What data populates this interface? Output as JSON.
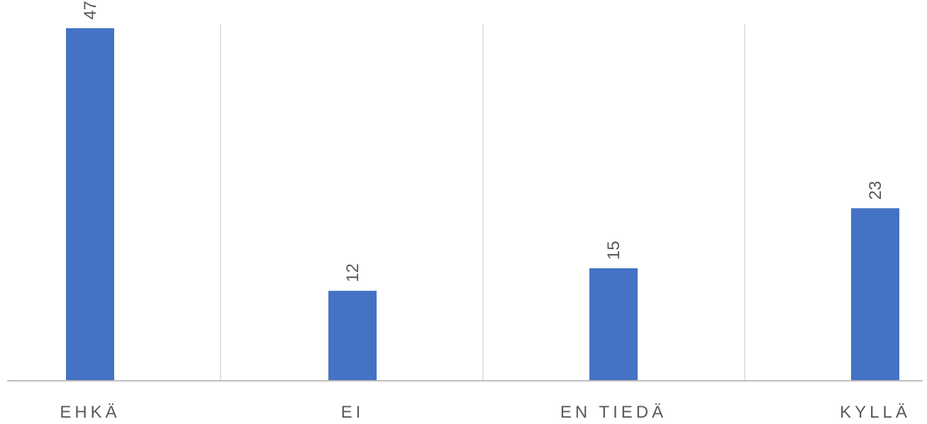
{
  "chart_data": {
    "type": "bar",
    "categories": [
      "EHKÄ",
      "EI",
      "EN TIEDÄ",
      "KYLLÄ"
    ],
    "values": [
      47,
      12,
      15,
      23
    ],
    "data_labels": [
      "47",
      "12",
      "15",
      "23"
    ],
    "data_label_orientation": "vertical",
    "ylim": [
      0,
      50
    ],
    "grid": "vertical-category-separators",
    "legend": "none",
    "colors": {
      "bar": "#4472C4",
      "label_text": "#595959",
      "gridline": "#D9D9D9",
      "axis": "#BFBFBF"
    }
  }
}
